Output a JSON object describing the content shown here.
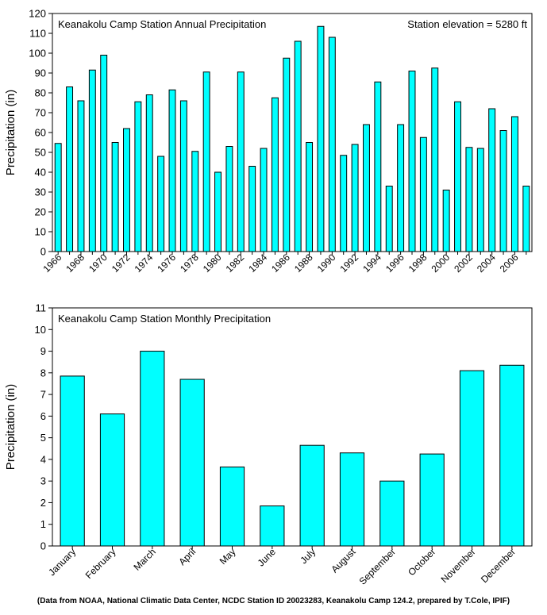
{
  "colors": {
    "bar_fill": "#00ffff",
    "bar_stroke": "#000000",
    "frame": "#000000"
  },
  "chart_data": [
    {
      "type": "bar",
      "title": "Keanakolu Camp Station Annual Precipitation",
      "annotation": "Station elevation = 5280 ft",
      "xlabel": "",
      "ylabel": "Precipitation (in)",
      "ylim": [
        0,
        120
      ],
      "yticks": [
        0,
        10,
        20,
        30,
        40,
        50,
        60,
        70,
        80,
        90,
        100,
        110,
        120
      ],
      "grid": false,
      "categories": [
        "1966",
        "1967",
        "1968",
        "1969",
        "1970",
        "1971",
        "1972",
        "1973",
        "1974",
        "1975",
        "1976",
        "1977",
        "1978",
        "1979",
        "1980",
        "1981",
        "1982",
        "1983",
        "1984",
        "1985",
        "1986",
        "1987",
        "1988",
        "1989",
        "1990",
        "1991",
        "1992",
        "1993",
        "1994",
        "1995",
        "1996",
        "1997",
        "1998",
        "1999",
        "2000",
        "2001",
        "2002",
        "2003",
        "2004",
        "2005",
        "2006",
        "2007"
      ],
      "tick_labels": [
        "1966",
        "1968",
        "1970",
        "1972",
        "1974",
        "1976",
        "1978",
        "1980",
        "1982",
        "1984",
        "1986",
        "1988",
        "1990",
        "1992",
        "1994",
        "1996",
        "1998",
        "2000",
        "2002",
        "2004",
        "2006"
      ],
      "values": [
        54.5,
        83,
        76,
        91.5,
        99,
        55,
        62,
        75.5,
        79,
        48,
        81.5,
        76,
        50.5,
        90.5,
        40,
        53,
        90.5,
        43,
        52,
        77.5,
        97.5,
        106,
        55,
        113.5,
        108,
        48.5,
        54,
        64,
        85.5,
        33,
        64,
        91,
        57.5,
        92.5,
        31,
        75.5,
        52.5,
        52,
        72,
        61,
        68,
        33
      ]
    },
    {
      "type": "bar",
      "title": "Keanakolu Camp Station Monthly Precipitation",
      "xlabel": "",
      "ylabel": "Precipitation (in)",
      "ylim": [
        0,
        11
      ],
      "yticks": [
        0,
        1,
        2,
        3,
        4,
        5,
        6,
        7,
        8,
        9,
        10,
        11
      ],
      "grid": false,
      "categories": [
        "January",
        "February",
        "March",
        "April",
        "May",
        "June",
        "July",
        "August",
        "September",
        "October",
        "November",
        "December"
      ],
      "values": [
        7.85,
        6.1,
        9.0,
        7.7,
        3.65,
        1.85,
        4.65,
        4.3,
        3.0,
        4.25,
        8.1,
        8.35
      ]
    }
  ],
  "footer": "(Data from NOAA, National Climatic Data Center, NCDC Station ID 20023283, Keanakolu Camp 124.2, prepared by T.Cole, IPIF)"
}
